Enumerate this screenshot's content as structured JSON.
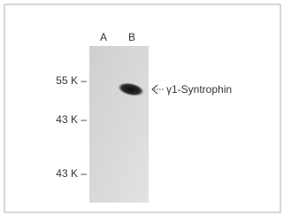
{
  "lanes": [
    "A",
    "B"
  ],
  "markers": [
    "55 K –",
    "43 K –",
    "43 K –"
  ],
  "annotation": "γ1-Syntrophin"
}
